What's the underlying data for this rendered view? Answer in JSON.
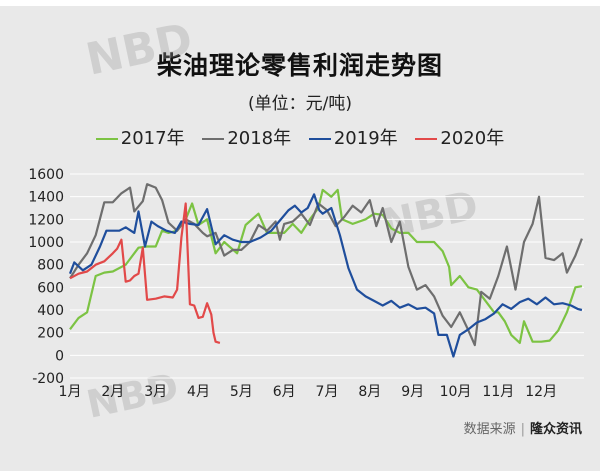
{
  "title": "柴油理论零售利润走势图",
  "unit": "(单位：元/吨)",
  "source": {
    "label": "数据来源",
    "brand": "隆众资讯"
  },
  "watermark": "NBD",
  "colors": {
    "background": "#e9e9e9",
    "grid": "#ffffff",
    "2017": "#7cc343",
    "2018": "#6e6e6e",
    "2019": "#1f4e9c",
    "2020": "#e24949"
  },
  "chart_data": {
    "type": "line",
    "title": "柴油理论零售利润走势图",
    "ylabel": "(单位：元/吨)",
    "xlabel": "",
    "ylim": [
      -200,
      1600
    ],
    "xlim": [
      1,
      13
    ],
    "y_ticks": [
      -200,
      0,
      200,
      400,
      600,
      800,
      1000,
      1200,
      1400,
      1600
    ],
    "x_ticks": [
      {
        "x": 1,
        "label": "1月"
      },
      {
        "x": 2,
        "label": "2月"
      },
      {
        "x": 3,
        "label": "3月"
      },
      {
        "x": 4,
        "label": "4月"
      },
      {
        "x": 5,
        "label": "5月"
      },
      {
        "x": 6,
        "label": "6月"
      },
      {
        "x": 7,
        "label": "7月"
      },
      {
        "x": 8,
        "label": "8月"
      },
      {
        "x": 9,
        "label": "9月"
      },
      {
        "x": 10,
        "label": "10月"
      },
      {
        "x": 11,
        "label": "11月"
      },
      {
        "x": 12,
        "label": "12月"
      }
    ],
    "grid": "horizontal",
    "legend": "top",
    "series": [
      {
        "name": "2017年",
        "color": "#7cc343",
        "points": [
          [
            1.0,
            230
          ],
          [
            1.2,
            330
          ],
          [
            1.4,
            380
          ],
          [
            1.6,
            700
          ],
          [
            1.8,
            730
          ],
          [
            2.0,
            740
          ],
          [
            2.3,
            800
          ],
          [
            2.6,
            950
          ],
          [
            2.8,
            960
          ],
          [
            3.0,
            960
          ],
          [
            3.15,
            1100
          ],
          [
            3.3,
            1080
          ],
          [
            3.5,
            1100
          ],
          [
            3.7,
            1200
          ],
          [
            3.85,
            1340
          ],
          [
            4.0,
            1150
          ],
          [
            4.2,
            1200
          ],
          [
            4.4,
            900
          ],
          [
            4.6,
            1000
          ],
          [
            4.9,
            900
          ],
          [
            5.1,
            1150
          ],
          [
            5.4,
            1250
          ],
          [
            5.6,
            1080
          ],
          [
            6.0,
            1080
          ],
          [
            6.2,
            1160
          ],
          [
            6.4,
            1080
          ],
          [
            6.6,
            1200
          ],
          [
            6.8,
            1300
          ],
          [
            6.9,
            1460
          ],
          [
            7.1,
            1400
          ],
          [
            7.25,
            1460
          ],
          [
            7.35,
            1200
          ],
          [
            7.6,
            1160
          ],
          [
            7.9,
            1200
          ],
          [
            8.1,
            1250
          ],
          [
            8.3,
            1240
          ],
          [
            8.5,
            1120
          ],
          [
            8.7,
            1080
          ],
          [
            8.9,
            1080
          ],
          [
            9.1,
            1000
          ],
          [
            9.3,
            1000
          ],
          [
            9.5,
            1000
          ],
          [
            9.7,
            920
          ],
          [
            9.85,
            780
          ],
          [
            9.9,
            620
          ],
          [
            10.1,
            700
          ],
          [
            10.3,
            600
          ],
          [
            10.5,
            580
          ],
          [
            10.7,
            480
          ],
          [
            10.9,
            380
          ],
          [
            11.0,
            380
          ],
          [
            11.15,
            300
          ],
          [
            11.3,
            180
          ],
          [
            11.5,
            110
          ],
          [
            11.6,
            300
          ],
          [
            11.8,
            120
          ],
          [
            12.0,
            120
          ],
          [
            12.2,
            130
          ],
          [
            12.4,
            220
          ],
          [
            12.6,
            380
          ],
          [
            12.8,
            600
          ],
          [
            12.95,
            610
          ]
        ]
      },
      {
        "name": "2018年",
        "color": "#6e6e6e",
        "points": [
          [
            1.0,
            680
          ],
          [
            1.2,
            800
          ],
          [
            1.4,
            900
          ],
          [
            1.6,
            1060
          ],
          [
            1.8,
            1350
          ],
          [
            2.0,
            1350
          ],
          [
            2.2,
            1430
          ],
          [
            2.4,
            1480
          ],
          [
            2.5,
            1270
          ],
          [
            2.7,
            1360
          ],
          [
            2.8,
            1510
          ],
          [
            3.0,
            1480
          ],
          [
            3.15,
            1370
          ],
          [
            3.3,
            1170
          ],
          [
            3.5,
            1100
          ],
          [
            3.7,
            1200
          ],
          [
            3.9,
            1160
          ],
          [
            4.1,
            1080
          ],
          [
            4.2,
            1050
          ],
          [
            4.4,
            1080
          ],
          [
            4.6,
            880
          ],
          [
            4.8,
            930
          ],
          [
            5.0,
            930
          ],
          [
            5.2,
            1000
          ],
          [
            5.4,
            1150
          ],
          [
            5.6,
            1100
          ],
          [
            5.8,
            1180
          ],
          [
            5.9,
            1020
          ],
          [
            6.0,
            1160
          ],
          [
            6.2,
            1180
          ],
          [
            6.4,
            1250
          ],
          [
            6.6,
            1150
          ],
          [
            6.8,
            1340
          ],
          [
            7.0,
            1280
          ],
          [
            7.2,
            1140
          ],
          [
            7.4,
            1220
          ],
          [
            7.6,
            1320
          ],
          [
            7.8,
            1260
          ],
          [
            8.0,
            1370
          ],
          [
            8.15,
            1140
          ],
          [
            8.3,
            1300
          ],
          [
            8.5,
            1000
          ],
          [
            8.7,
            1180
          ],
          [
            8.9,
            780
          ],
          [
            9.1,
            580
          ],
          [
            9.3,
            620
          ],
          [
            9.5,
            520
          ],
          [
            9.7,
            350
          ],
          [
            9.9,
            250
          ],
          [
            10.1,
            380
          ],
          [
            10.3,
            220
          ],
          [
            10.45,
            90
          ],
          [
            10.6,
            560
          ],
          [
            10.8,
            500
          ],
          [
            11.0,
            700
          ],
          [
            11.2,
            960
          ],
          [
            11.4,
            580
          ],
          [
            11.6,
            1000
          ],
          [
            11.8,
            1160
          ],
          [
            11.95,
            1400
          ],
          [
            12.1,
            860
          ],
          [
            12.3,
            840
          ],
          [
            12.5,
            900
          ],
          [
            12.6,
            730
          ],
          [
            12.8,
            880
          ],
          [
            12.95,
            1030
          ]
        ]
      },
      {
        "name": "2019年",
        "color": "#1f4e9c",
        "points": [
          [
            1.0,
            720
          ],
          [
            1.1,
            820
          ],
          [
            1.3,
            750
          ],
          [
            1.5,
            800
          ],
          [
            1.7,
            960
          ],
          [
            1.85,
            1100
          ],
          [
            2.0,
            1100
          ],
          [
            2.15,
            1100
          ],
          [
            2.3,
            1130
          ],
          [
            2.5,
            1080
          ],
          [
            2.6,
            1270
          ],
          [
            2.75,
            960
          ],
          [
            2.9,
            1180
          ],
          [
            3.05,
            1140
          ],
          [
            3.25,
            1100
          ],
          [
            3.45,
            1080
          ],
          [
            3.6,
            1180
          ],
          [
            3.8,
            1160
          ],
          [
            4.0,
            1150
          ],
          [
            4.2,
            1290
          ],
          [
            4.4,
            980
          ],
          [
            4.6,
            1060
          ],
          [
            4.8,
            1020
          ],
          [
            5.0,
            1000
          ],
          [
            5.2,
            1000
          ],
          [
            5.45,
            1040
          ],
          [
            5.7,
            1100
          ],
          [
            5.9,
            1190
          ],
          [
            6.1,
            1280
          ],
          [
            6.25,
            1320
          ],
          [
            6.4,
            1260
          ],
          [
            6.55,
            1300
          ],
          [
            6.7,
            1420
          ],
          [
            6.82,
            1280
          ],
          [
            6.9,
            1250
          ],
          [
            7.1,
            1300
          ],
          [
            7.3,
            1060
          ],
          [
            7.5,
            770
          ],
          [
            7.7,
            580
          ],
          [
            7.9,
            520
          ],
          [
            8.1,
            480
          ],
          [
            8.3,
            440
          ],
          [
            8.5,
            480
          ],
          [
            8.7,
            420
          ],
          [
            8.9,
            450
          ],
          [
            9.1,
            410
          ],
          [
            9.3,
            420
          ],
          [
            9.5,
            370
          ],
          [
            9.6,
            180
          ],
          [
            9.8,
            180
          ],
          [
            9.95,
            -10
          ],
          [
            10.1,
            180
          ],
          [
            10.3,
            230
          ],
          [
            10.5,
            290
          ],
          [
            10.7,
            320
          ],
          [
            10.9,
            370
          ],
          [
            11.1,
            450
          ],
          [
            11.3,
            410
          ],
          [
            11.5,
            470
          ],
          [
            11.7,
            500
          ],
          [
            11.9,
            450
          ],
          [
            12.1,
            510
          ],
          [
            12.3,
            450
          ],
          [
            12.5,
            460
          ],
          [
            12.7,
            440
          ],
          [
            12.85,
            410
          ],
          [
            12.95,
            400
          ]
        ]
      },
      {
        "name": "2020年",
        "color": "#e24949",
        "points": [
          [
            1.0,
            680
          ],
          [
            1.2,
            720
          ],
          [
            1.4,
            740
          ],
          [
            1.6,
            800
          ],
          [
            1.8,
            830
          ],
          [
            2.0,
            900
          ],
          [
            2.1,
            940
          ],
          [
            2.2,
            1020
          ],
          [
            2.3,
            650
          ],
          [
            2.4,
            660
          ],
          [
            2.5,
            700
          ],
          [
            2.6,
            720
          ],
          [
            2.7,
            950
          ],
          [
            2.8,
            490
          ],
          [
            3.0,
            500
          ],
          [
            3.2,
            520
          ],
          [
            3.4,
            510
          ],
          [
            3.5,
            580
          ],
          [
            3.6,
            1040
          ],
          [
            3.7,
            1340
          ],
          [
            3.8,
            450
          ],
          [
            3.9,
            440
          ],
          [
            4.0,
            330
          ],
          [
            4.1,
            340
          ],
          [
            4.2,
            460
          ],
          [
            4.3,
            360
          ],
          [
            4.35,
            200
          ],
          [
            4.4,
            120
          ],
          [
            4.5,
            110
          ]
        ]
      }
    ]
  }
}
